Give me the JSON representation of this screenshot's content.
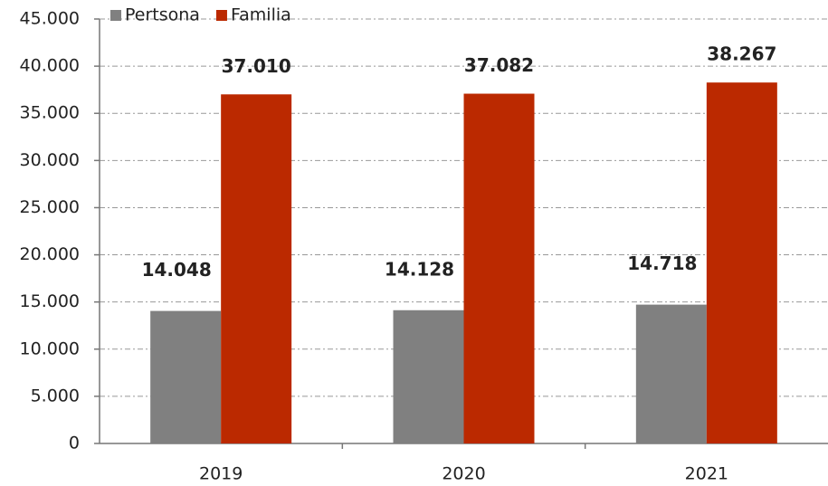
{
  "chart_data": {
    "type": "bar",
    "categories": [
      "2019",
      "2020",
      "2021"
    ],
    "series": [
      {
        "name": "Pertsona",
        "color": "#808080",
        "values": [
          14048,
          14128,
          14718
        ],
        "value_labels": [
          "14.048",
          "14.128",
          "14.718"
        ],
        "label_color": "#111111"
      },
      {
        "name": "Familia",
        "color": "#bb2900",
        "values": [
          37010,
          37082,
          38267
        ],
        "value_labels": [
          "37.010",
          "37.082",
          "38.267"
        ],
        "label_color": "#c0391b"
      }
    ],
    "ylim": [
      0,
      45000
    ],
    "yticks": [
      0,
      {
        "value": 5000,
        "label": "5.000"
      },
      {
        "value": 10000,
        "label": "10.000"
      },
      {
        "value": 15000,
        "label": "15.000"
      },
      {
        "value": 20000,
        "label": "20.000"
      },
      {
        "value": 25000,
        "label": "25.000"
      },
      {
        "value": 30000,
        "label": "30.000"
      },
      {
        "value": 35000,
        "label": "35.000"
      },
      {
        "value": 40000,
        "label": "40.000"
      },
      {
        "value": 45000,
        "label": "45.000"
      }
    ],
    "grid": true,
    "legend": "top-left"
  }
}
